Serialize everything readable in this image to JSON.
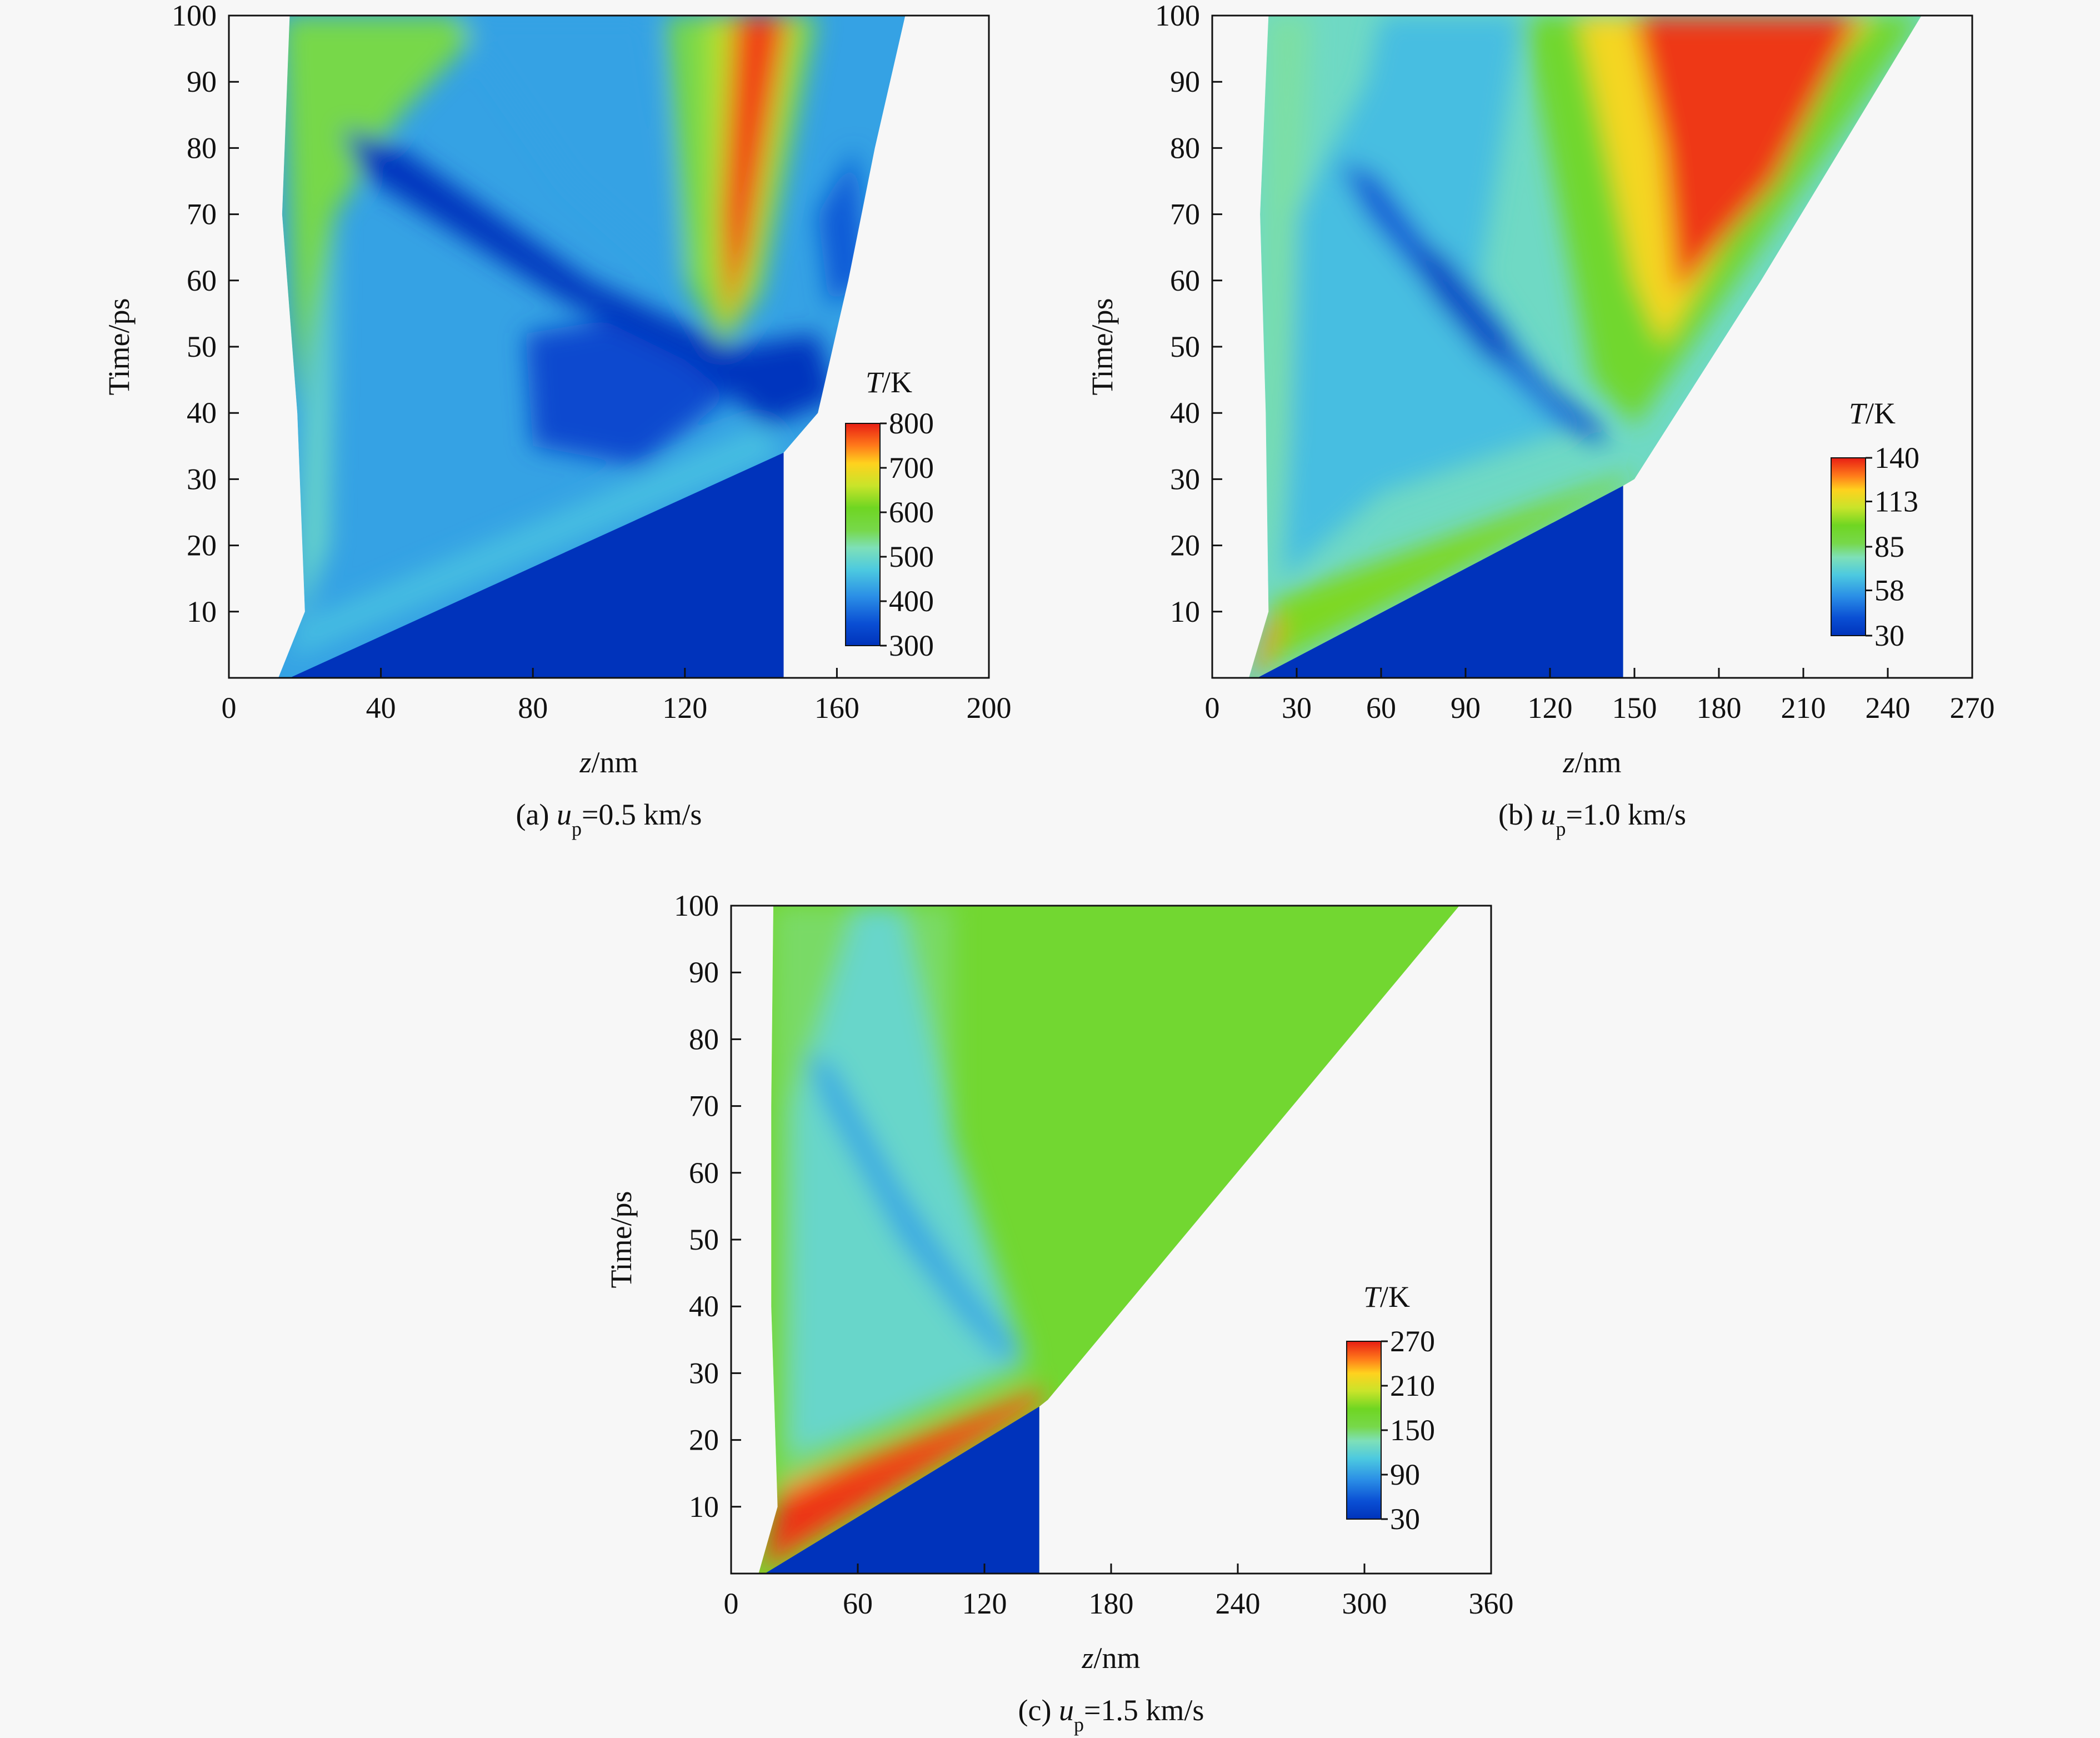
{
  "chart_data": [
    {
      "type": "heatmap",
      "panel_caption": {
        "prefix": "(a) ",
        "var": "u",
        "sub": "p",
        "value": "=0.5 km/s"
      },
      "xlabel": {
        "var": "z",
        "unit": "/nm"
      },
      "ylabel": "Time/ps",
      "xlim": [
        0,
        200
      ],
      "ylim": [
        0,
        100
      ],
      "xticks": [
        0,
        40,
        80,
        120,
        160,
        200
      ],
      "yticks": [
        10,
        20,
        30,
        40,
        50,
        60,
        70,
        80,
        90,
        100
      ],
      "colorbar": {
        "var": "T",
        "unit": "/K",
        "ticks": [
          800,
          700,
          600,
          500,
          400,
          300
        ],
        "range": [
          300,
          800
        ]
      },
      "background_value": 430,
      "region": {
        "left_edge": [
          [
            13,
            0
          ],
          [
            20,
            10
          ],
          [
            18,
            40
          ],
          [
            14,
            70
          ],
          [
            16,
            100
          ]
        ],
        "right_edge": [
          [
            146,
            0
          ],
          [
            146,
            34
          ],
          [
            155,
            40
          ],
          [
            163,
            60
          ],
          [
            170,
            80
          ],
          [
            178,
            100
          ]
        ]
      },
      "unshocked": {
        "polygon": [
          [
            16,
            0
          ],
          [
            146,
            0
          ],
          [
            146,
            34
          ]
        ],
        "value": 300
      },
      "features": [
        {
          "name": "upper-left-warm",
          "polygon": [
            [
              18,
              40
            ],
            [
              14,
              100
            ],
            [
              70,
              100
            ],
            [
              45,
              85
            ],
            [
              28,
              70
            ]
          ],
          "value": 560
        },
        {
          "name": "left-band",
          "polygon": [
            [
              18,
              8
            ],
            [
              20,
              40
            ],
            [
              28,
              70
            ],
            [
              26,
              20
            ]
          ],
          "value": 500
        },
        {
          "name": "cool-upper-mid",
          "polygon": [
            [
              60,
              100
            ],
            [
              110,
              100
            ],
            [
              120,
              60
            ],
            [
              90,
              75
            ]
          ],
          "value": 430
        },
        {
          "name": "shock-front-band",
          "polygon": [
            [
              18,
              8
            ],
            [
              140,
              38
            ],
            [
              146,
              34
            ],
            [
              16,
              3
            ]
          ],
          "value": 460
        },
        {
          "name": "cold-center",
          "polygon": [
            [
              78,
              52
            ],
            [
              110,
              55
            ],
            [
              135,
              44
            ],
            [
              108,
              32
            ],
            [
              80,
              35
            ]
          ],
          "value": 340
        },
        {
          "name": "cold-diagonal",
          "polygon": [
            [
              30,
              83
            ],
            [
              45,
              80
            ],
            [
              95,
              60
            ],
            [
              133,
              50
            ],
            [
              155,
              52
            ],
            [
              160,
              42
            ],
            [
              142,
              38
            ],
            [
              120,
              48
            ],
            [
              88,
              57
            ],
            [
              35,
              76
            ]
          ],
          "value": 305
        },
        {
          "name": "hot-plume-outer",
          "polygon": [
            [
              115,
              100
            ],
            [
              155,
              100
            ],
            [
              140,
              58
            ],
            [
              130,
              50
            ],
            [
              120,
              60
            ]
          ],
          "value": 560
        },
        {
          "name": "hot-plume-mid",
          "polygon": [
            [
              126,
              100
            ],
            [
              150,
              100
            ],
            [
              138,
              60
            ],
            [
              131,
              52
            ],
            [
              127,
              62
            ]
          ],
          "value": 650
        },
        {
          "name": "hot-plume-core",
          "polygon": [
            [
              133,
              100
            ],
            [
              147,
              100
            ],
            [
              137,
              65
            ],
            [
              131,
              53
            ],
            [
              130,
              70
            ]
          ],
          "value": 780
        },
        {
          "name": "right-edge-cool",
          "polygon": [
            [
              155,
              70
            ],
            [
              165,
              80
            ],
            [
              168,
              60
            ],
            [
              158,
              56
            ]
          ],
          "value": 360
        }
      ]
    },
    {
      "type": "heatmap",
      "panel_caption": {
        "prefix": "(b) ",
        "var": "u",
        "sub": "p",
        "value": "=1.0 km/s"
      },
      "xlabel": {
        "var": "z",
        "unit": "/nm"
      },
      "ylabel": "Time/ps",
      "xlim": [
        0,
        270
      ],
      "ylim": [
        0,
        100
      ],
      "xticks": [
        0,
        30,
        60,
        90,
        120,
        150,
        180,
        210,
        240,
        270
      ],
      "yticks": [
        10,
        20,
        30,
        40,
        50,
        60,
        70,
        80,
        90,
        100
      ],
      "colorbar": {
        "var": "T",
        "unit": "/K",
        "ticks": [
          140,
          113,
          85,
          58,
          30
        ],
        "range": [
          30,
          140
        ]
      },
      "background_value": 75,
      "region": {
        "left_edge": [
          [
            13,
            0
          ],
          [
            20,
            10
          ],
          [
            19,
            40
          ],
          [
            17,
            70
          ],
          [
            20,
            100
          ]
        ],
        "right_edge": [
          [
            146,
            0
          ],
          [
            146,
            29
          ],
          [
            150,
            30
          ],
          [
            195,
            60
          ],
          [
            252,
            100
          ]
        ]
      },
      "unshocked": {
        "polygon": [
          [
            16,
            0
          ],
          [
            146,
            0
          ],
          [
            146,
            29
          ]
        ],
        "value": 30
      },
      "features": [
        {
          "name": "shock-front-hot",
          "polygon": [
            [
              13,
              0
            ],
            [
              146,
              29
            ],
            [
              150,
              31
            ],
            [
              22,
              12
            ],
            [
              18,
              3
            ]
          ],
          "value": 100
        },
        {
          "name": "corner-hot",
          "polygon": [
            [
              13,
              0
            ],
            [
              22,
              10
            ],
            [
              25,
              8
            ],
            [
              17,
              1
            ]
          ],
          "value": 130
        },
        {
          "name": "left-band",
          "polygon": [
            [
              20,
              12
            ],
            [
              19,
              100
            ],
            [
              35,
              100
            ],
            [
              28,
              40
            ]
          ],
          "value": 80
        },
        {
          "name": "cool-wedge",
          "polygon": [
            [
              25,
              15
            ],
            [
              30,
              70
            ],
            [
              55,
              90
            ],
            [
              60,
              100
            ],
            [
              110,
              100
            ],
            [
              95,
              60
            ],
            [
              130,
              38
            ],
            [
              60,
              28
            ]
          ],
          "value": 65
        },
        {
          "name": "cold-diagonal",
          "polygon": [
            [
              45,
              78
            ],
            [
              58,
              76
            ],
            [
              90,
              58
            ],
            [
              120,
              44
            ],
            [
              138,
              38
            ],
            [
              140,
              35
            ],
            [
              125,
              38
            ],
            [
              95,
              50
            ],
            [
              55,
              70
            ]
          ],
          "value": 42
        },
        {
          "name": "cold-core",
          "polygon": [
            [
              70,
              66
            ],
            [
              82,
              64
            ],
            [
              105,
              52
            ],
            [
              110,
              47
            ],
            [
              98,
              48
            ],
            [
              78,
              58
            ]
          ],
          "value": 34
        },
        {
          "name": "warm-fan",
          "polygon": [
            [
              110,
              100
            ],
            [
              252,
              100
            ],
            [
              150,
              38
            ],
            [
              135,
              45
            ]
          ],
          "value": 95
        },
        {
          "name": "hot-fan",
          "polygon": [
            [
              130,
              100
            ],
            [
              235,
              100
            ],
            [
              215,
              90
            ],
            [
              160,
              50
            ],
            [
              150,
              60
            ]
          ],
          "value": 118
        },
        {
          "name": "hottest-fan",
          "polygon": [
            [
              150,
              100
            ],
            [
              230,
              100
            ],
            [
              200,
              75
            ],
            [
              165,
              58
            ],
            [
              160,
              80
            ]
          ],
          "value": 137
        }
      ]
    },
    {
      "type": "heatmap",
      "panel_caption": {
        "prefix": "(c) ",
        "var": "u",
        "sub": "p",
        "value": "=1.5 km/s"
      },
      "xlabel": {
        "var": "z",
        "unit": "/nm"
      },
      "ylabel": "Time/ps",
      "xlim": [
        0,
        360
      ],
      "ylim": [
        0,
        100
      ],
      "xticks": [
        0,
        60,
        120,
        180,
        240,
        300,
        360
      ],
      "yticks": [
        10,
        20,
        30,
        40,
        50,
        60,
        70,
        80,
        90,
        100
      ],
      "colorbar": {
        "var": "T",
        "unit": "/K",
        "ticks": [
          270,
          210,
          150,
          90,
          30
        ],
        "range": [
          30,
          270
        ]
      },
      "background_value": 170,
      "region": {
        "left_edge": [
          [
            13,
            0
          ],
          [
            22,
            10
          ],
          [
            19,
            40
          ],
          [
            19,
            70
          ],
          [
            20,
            100
          ]
        ],
        "right_edge": [
          [
            146,
            0
          ],
          [
            146,
            25
          ],
          [
            150,
            26
          ],
          [
            345,
            100
          ]
        ]
      },
      "unshocked": {
        "polygon": [
          [
            16,
            0
          ],
          [
            146,
            0
          ],
          [
            146,
            25
          ]
        ],
        "value": 30
      },
      "features": [
        {
          "name": "left-wedge",
          "polygon": [
            [
              22,
              12
            ],
            [
              20,
              100
            ],
            [
              105,
              100
            ],
            [
              105,
              55
            ],
            [
              140,
              30
            ],
            [
              60,
              20
            ]
          ],
          "value": 150
        },
        {
          "name": "cool-wedge",
          "polygon": [
            [
              28,
              18
            ],
            [
              30,
              70
            ],
            [
              45,
              85
            ],
            [
              60,
              100
            ],
            [
              80,
              100
            ],
            [
              105,
              65
            ],
            [
              140,
              32
            ],
            [
              70,
              22
            ]
          ],
          "value": 125
        },
        {
          "name": "cold-diagonal",
          "polygon": [
            [
              35,
              78
            ],
            [
              48,
              76
            ],
            [
              80,
              58
            ],
            [
              110,
              44
            ],
            [
              135,
              34
            ],
            [
              132,
              31
            ],
            [
              110,
              38
            ],
            [
              80,
              50
            ],
            [
              45,
              70
            ]
          ],
          "value": 95
        },
        {
          "name": "front-hot",
          "polygon": [
            [
              13,
              0
            ],
            [
              146,
              25
            ],
            [
              148,
              28
            ],
            [
              24,
              13
            ],
            [
              18,
              4
            ]
          ],
          "value": 245
        },
        {
          "name": "front-hottest",
          "polygon": [
            [
              15,
              1
            ],
            [
              146,
              26
            ],
            [
              147,
              27
            ],
            [
              22,
              11
            ]
          ],
          "value": 265
        }
      ]
    }
  ]
}
